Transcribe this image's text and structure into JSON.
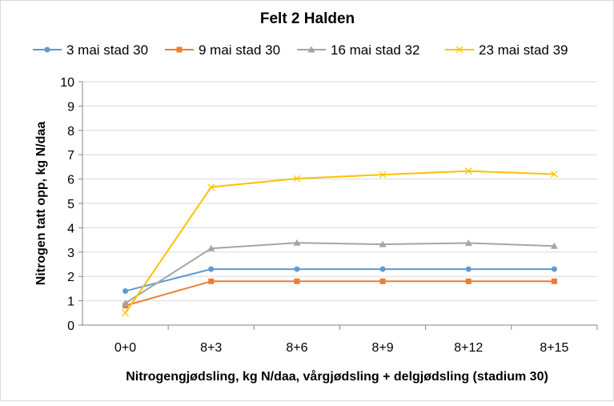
{
  "chart_data": {
    "type": "line",
    "title": "Felt 2 Halden",
    "xlabel": "Nitrogengjødsling, kg N/daa, vårgjødsling + delgjødsling (stadium 30)",
    "ylabel": "Nitrogen tatt opp, kg N/daa",
    "ylim": [
      0,
      10
    ],
    "yticks": [
      "0",
      "1",
      "2",
      "3",
      "4",
      "5",
      "6",
      "7",
      "8",
      "9",
      "10"
    ],
    "categories": [
      "0+0",
      "8+3",
      "8+6",
      "8+9",
      "8+12",
      "8+15"
    ],
    "grid": true,
    "legend_position": "top",
    "series": [
      {
        "name": "3 mai stad 30",
        "color": "#5B9BD5",
        "marker": "circle",
        "values": [
          1.4,
          2.3,
          2.3,
          2.3,
          2.3,
          2.3
        ]
      },
      {
        "name": "9 mai stad 30",
        "color": "#ED7D31",
        "marker": "square",
        "values": [
          0.8,
          1.8,
          1.8,
          1.8,
          1.8,
          1.8
        ]
      },
      {
        "name": "16 mai stad 32",
        "color": "#A5A5A5",
        "marker": "triangle",
        "values": [
          0.9,
          3.15,
          3.38,
          3.32,
          3.37,
          3.25
        ]
      },
      {
        "name": "23 mai stad 39",
        "color": "#FFC000",
        "marker": "x",
        "values": [
          0.5,
          5.67,
          6.02,
          6.18,
          6.33,
          6.2
        ]
      }
    ]
  }
}
